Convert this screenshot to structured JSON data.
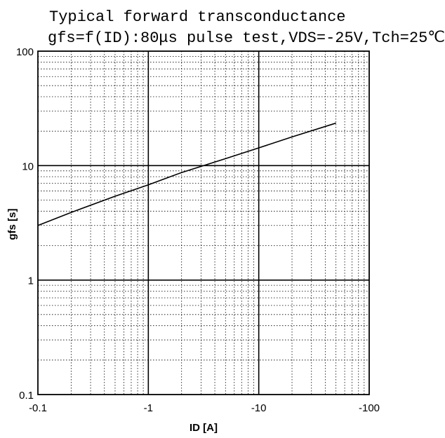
{
  "chart_data": {
    "type": "line",
    "title": "Typical forward transconductance",
    "subtitle": "gfs=f(ID):80μs pulse test,VDS=-25V,Tch=25℃",
    "xlabel": "ID [A]",
    "ylabel": "gfs [s]",
    "x_scale": "log",
    "y_scale": "log",
    "xlim": [
      -0.1,
      -100
    ],
    "ylim": [
      0.1,
      100
    ],
    "x_ticks": [
      -0.1,
      -1,
      -10,
      -100
    ],
    "x_tick_labels": [
      "-0.1",
      "-1",
      "-10",
      "-100"
    ],
    "y_ticks": [
      0.1,
      1,
      10,
      100
    ],
    "y_tick_labels": [
      "0.1",
      "1",
      "10",
      "100"
    ],
    "grid": true,
    "series": [
      {
        "x": [
          -0.1,
          -0.2,
          -0.5,
          -1,
          -2,
          -5,
          -10,
          -20,
          -50
        ],
        "y": [
          3.0,
          3.9,
          5.4,
          6.8,
          8.7,
          11.5,
          14.3,
          17.8,
          23.5
        ]
      }
    ]
  }
}
